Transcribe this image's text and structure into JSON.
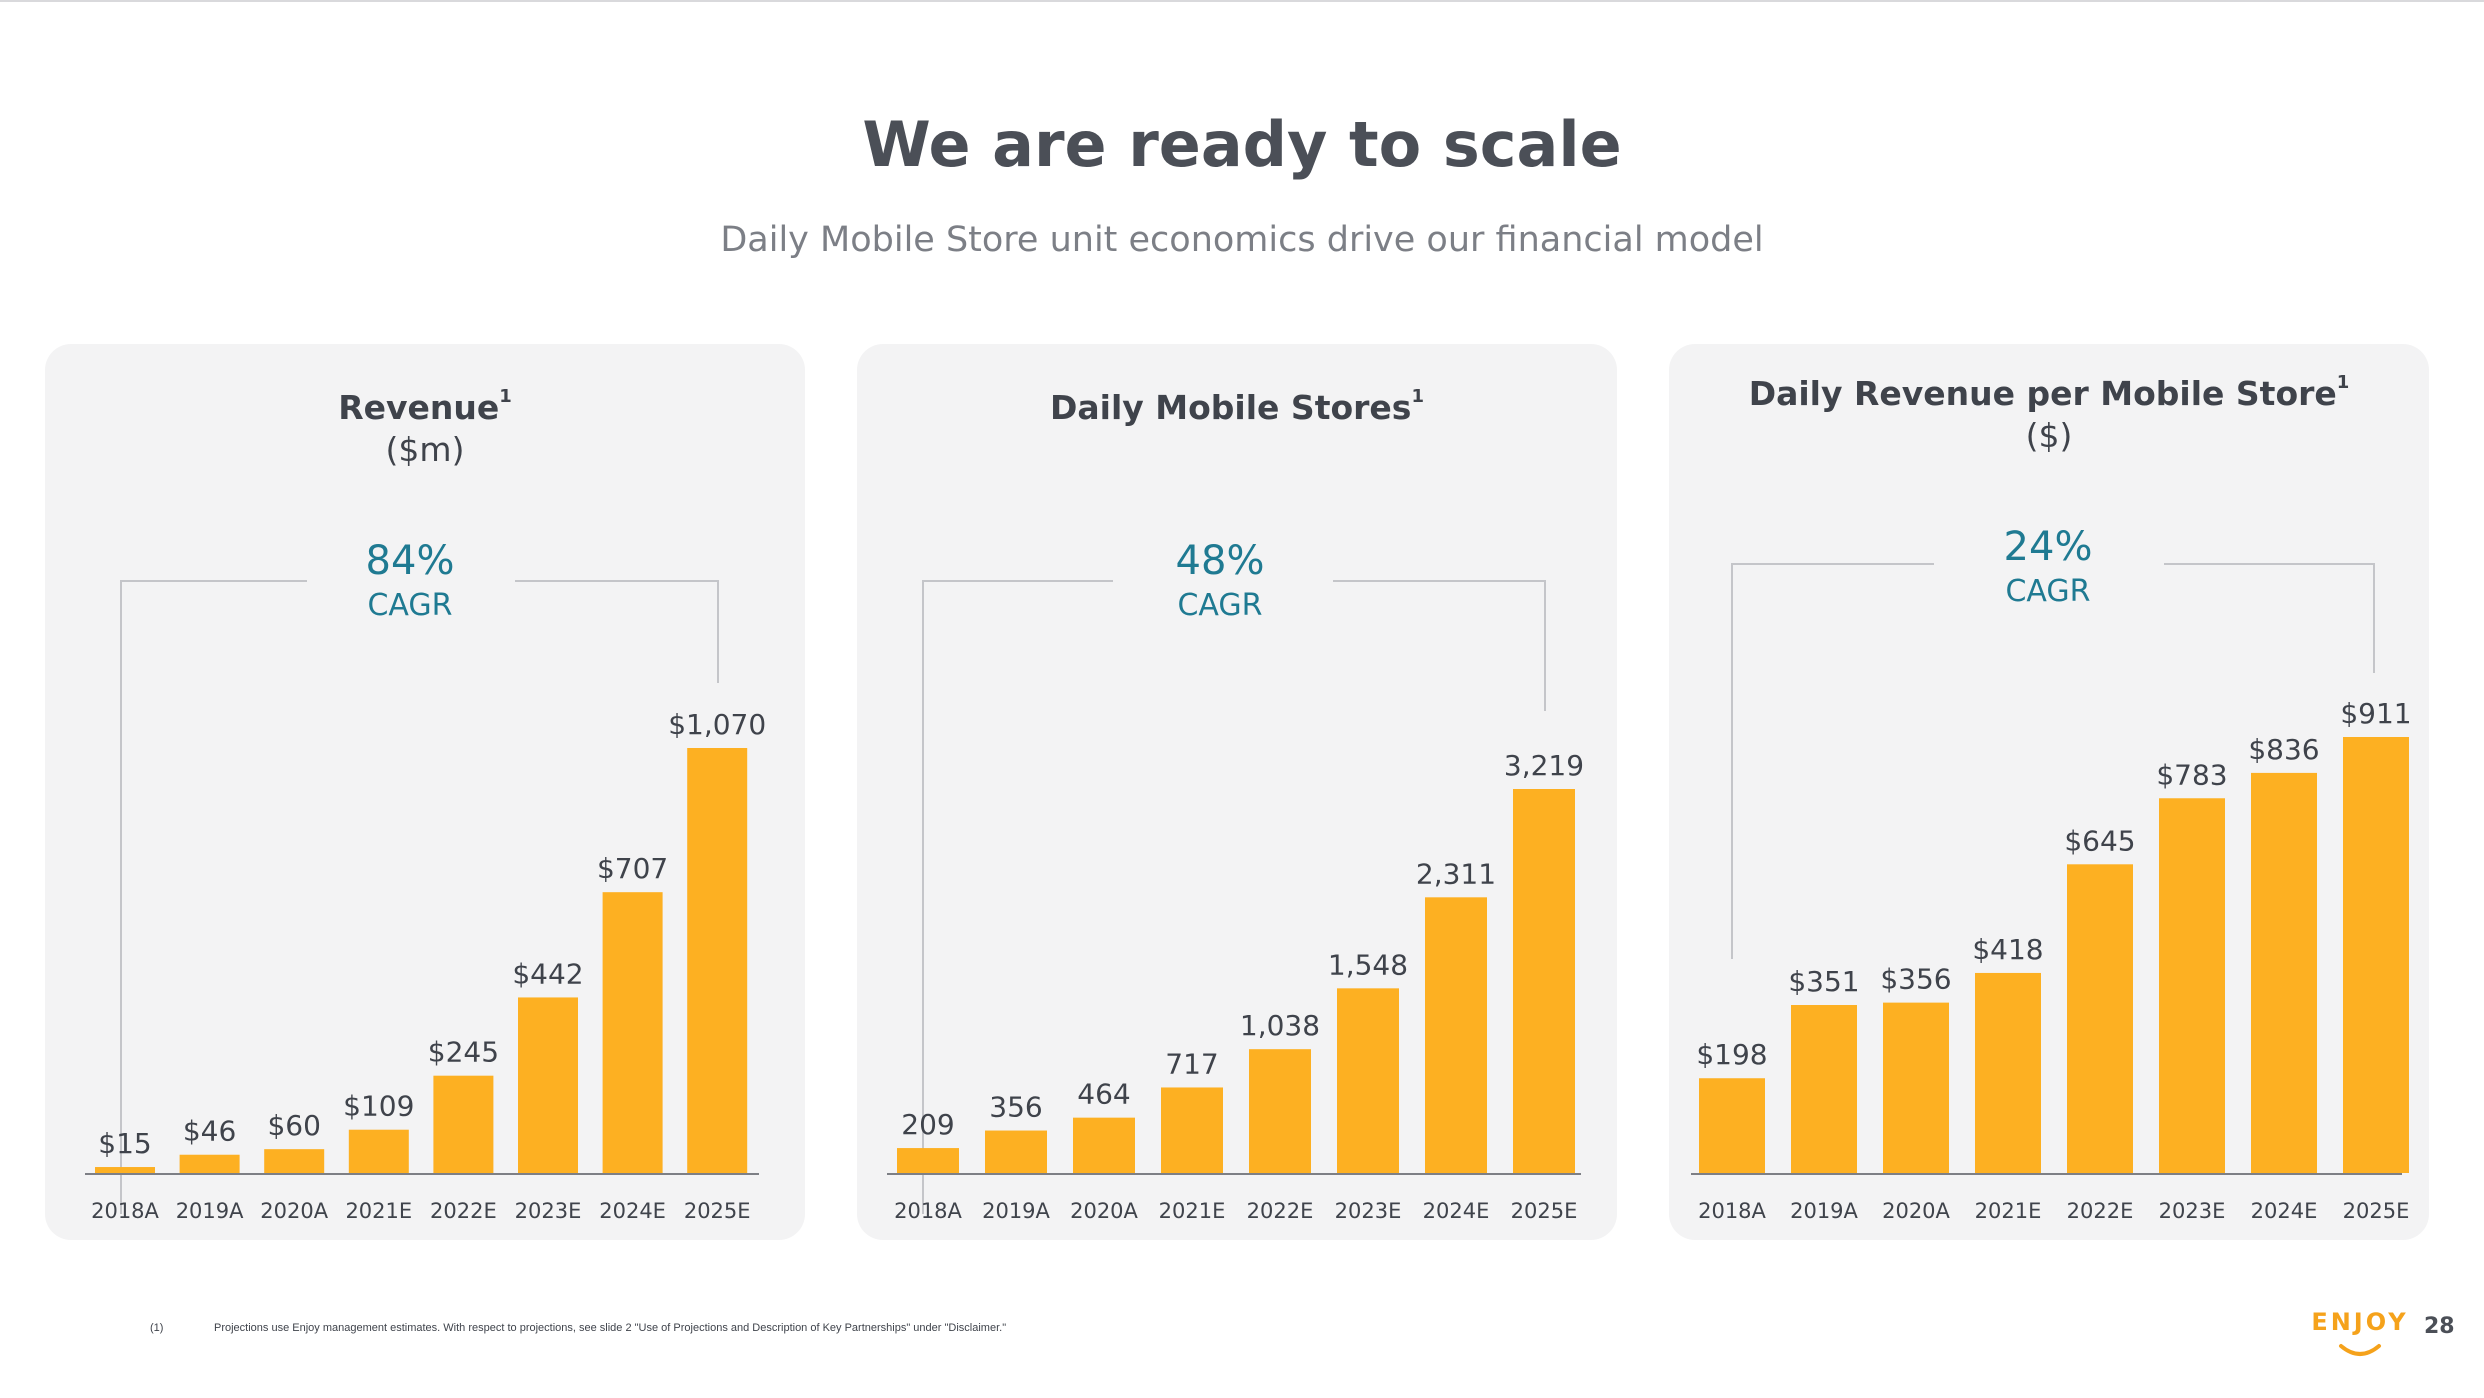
{
  "slide": {
    "title": "We are ready to scale",
    "subtitle": "Daily Mobile Store unit economics drive our financial model",
    "page_number": "28"
  },
  "footnote": {
    "marker": "(1)",
    "text": "Projections use Enjoy management estimates. With respect to projections, see slide 2 \"Use of Projections and Description of Key Partnerships\" under \"Disclaimer.\""
  },
  "logo": {
    "text": "ENJOY",
    "icon": "smile-icon"
  },
  "colors": {
    "bar": "#FDB022",
    "accent": "#1F7A92",
    "panel": "#F3F3F4"
  },
  "panels": [
    {
      "title": "Revenue",
      "sup": "1",
      "unit": "($m)",
      "cagr_value": "84%",
      "cagr_label": "CAGR"
    },
    {
      "title": "Daily Mobile Stores",
      "sup": "1",
      "unit": "",
      "cagr_value": "48%",
      "cagr_label": "CAGR"
    },
    {
      "title": "Daily Revenue per Mobile Store",
      "sup": "1",
      "unit": "($)",
      "cagr_value": "24%",
      "cagr_label": "CAGR"
    }
  ],
  "chart_data": [
    {
      "type": "bar",
      "title": "Revenue",
      "ylabel": "($m)",
      "categories": [
        "2018A",
        "2019A",
        "2020A",
        "2021E",
        "2022E",
        "2023E",
        "2024E",
        "2025E"
      ],
      "values": [
        15,
        46,
        60,
        109,
        245,
        442,
        707,
        1070
      ],
      "labels": [
        "$15",
        "$46",
        "$60",
        "$109",
        "$245",
        "$442",
        "$707",
        "$1,070"
      ],
      "ylim": [
        0,
        1070
      ],
      "grid": false,
      "annotation": "84% CAGR"
    },
    {
      "type": "bar",
      "title": "Daily Mobile Stores",
      "categories": [
        "2018A",
        "2019A",
        "2020A",
        "2021E",
        "2022E",
        "2023E",
        "2024E",
        "2025E"
      ],
      "values": [
        209,
        356,
        464,
        717,
        1038,
        1548,
        2311,
        3219
      ],
      "labels": [
        "209",
        "356",
        "464",
        "717",
        "1,038",
        "1,548",
        "2,311",
        "3,219"
      ],
      "ylim": [
        0,
        3219
      ],
      "grid": false,
      "annotation": "48% CAGR"
    },
    {
      "type": "bar",
      "title": "Daily Revenue per Mobile Store",
      "ylabel": "($)",
      "categories": [
        "2018A",
        "2019A",
        "2020A",
        "2021E",
        "2022E",
        "2023E",
        "2024E",
        "2025E"
      ],
      "values": [
        198,
        351,
        356,
        418,
        645,
        783,
        836,
        911
      ],
      "labels": [
        "$198",
        "$351",
        "$356",
        "$418",
        "$645",
        "$783",
        "$836",
        "$911"
      ],
      "ylim": [
        0,
        911
      ],
      "grid": false,
      "annotation": "24% CAGR"
    }
  ]
}
